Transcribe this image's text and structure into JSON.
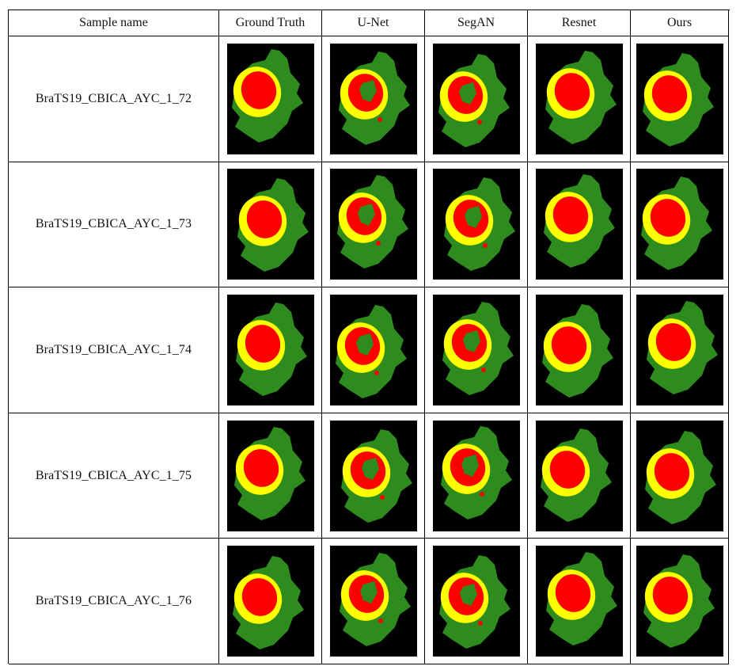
{
  "table": {
    "headers": [
      "Sample name",
      "Ground Truth",
      "U-Net",
      "SegAN",
      "Resnet",
      "Ours"
    ],
    "rows": [
      {
        "name": "BraTS19_CBICA_AYC_1_72"
      },
      {
        "name": "BraTS19_CBICA_AYC_1_73"
      },
      {
        "name": "BraTS19_CBICA_AYC_1_74"
      },
      {
        "name": "BraTS19_CBICA_AYC_1_75"
      },
      {
        "name": "BraTS19_CBICA_AYC_1_76"
      }
    ]
  },
  "colors": {
    "background": "#000000",
    "edema": "#2e8b1e",
    "enhancing": "#ffff00",
    "core": "#ff0000"
  }
}
